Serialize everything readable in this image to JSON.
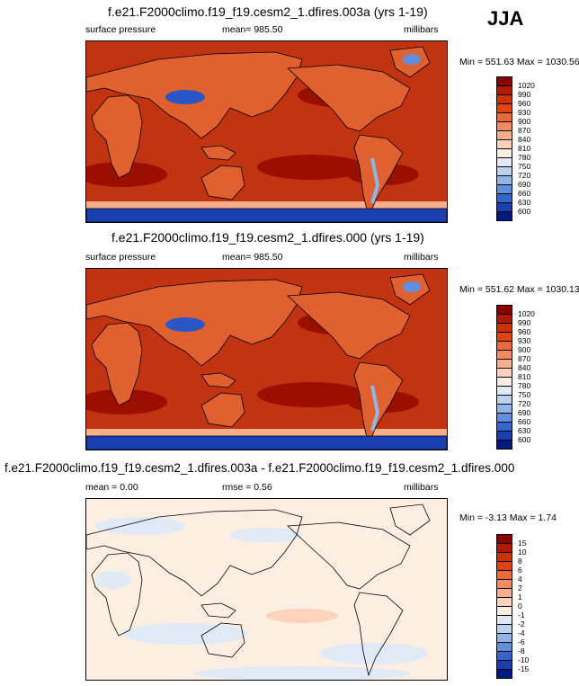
{
  "season": "JJA",
  "panels": [
    {
      "title": "f.e21.F2000climo.f19_f19.cesm2_1.dfires.003a (yrs 1-19)",
      "left_label": "surface pressure",
      "center_label": "mean= 985.50",
      "right_label": "millibars",
      "minmax": "Min = 551.63 Max = 1030.56",
      "type": "field"
    },
    {
      "title": "f.e21.F2000climo.f19_f19.cesm2_1.dfires.000 (yrs 1-19)",
      "left_label": "surface pressure",
      "center_label": "mean= 985.50",
      "right_label": "millibars",
      "minmax": "Min = 551.62 Max = 1030.13",
      "type": "field"
    },
    {
      "title": "f.e21.F2000climo.f19_f19.cesm2_1.dfires.003a - f.e21.F2000climo.f19_f19.cesm2_1.dfires.000",
      "left_label": "mean =   0.00",
      "center_label": "rmse =   0.56",
      "right_label": "millibars",
      "minmax": "Min =  -3.13 Max =   1.74",
      "type": "diff"
    }
  ],
  "chart_data": [
    {
      "type": "heatmap",
      "title": "f.e21.F2000climo.f19_f19.cesm2_1.dfires.003a (yrs 1-19)",
      "variable": "surface pressure",
      "units": "millibars",
      "mean": 985.5,
      "min": 551.63,
      "max": 1030.56,
      "colorbar_levels": [
        1020,
        990,
        960,
        930,
        900,
        870,
        840,
        810,
        780,
        750,
        720,
        690,
        660,
        630,
        600
      ],
      "colorbar_colors": [
        "#8b0000",
        "#b01a00",
        "#cc3300",
        "#dd4411",
        "#ea6a38",
        "#f28b5f",
        "#f7ae8b",
        "#fbd3bd",
        "#fdeee2",
        "#dfeaf6",
        "#b8d2ef",
        "#8fb6e6",
        "#5f8fdd",
        "#3366cc",
        "#1a3fb0",
        "#001a80"
      ]
    },
    {
      "type": "heatmap",
      "title": "f.e21.F2000climo.f19_f19.cesm2_1.dfires.000 (yrs 1-19)",
      "variable": "surface pressure",
      "units": "millibars",
      "mean": 985.5,
      "min": 551.62,
      "max": 1030.13,
      "colorbar_levels": [
        1020,
        990,
        960,
        930,
        900,
        870,
        840,
        810,
        780,
        750,
        720,
        690,
        660,
        630,
        600
      ],
      "colorbar_colors": [
        "#8b0000",
        "#b01a00",
        "#cc3300",
        "#dd4411",
        "#ea6a38",
        "#f28b5f",
        "#f7ae8b",
        "#fbd3bd",
        "#fdeee2",
        "#dfeaf6",
        "#b8d2ef",
        "#8fb6e6",
        "#5f8fdd",
        "#3366cc",
        "#1a3fb0",
        "#001a80"
      ]
    },
    {
      "type": "heatmap",
      "title": "f.e21.F2000climo.f19_f19.cesm2_1.dfires.003a - f.e21.F2000climo.f19_f19.cesm2_1.dfires.000",
      "units": "millibars",
      "mean": 0.0,
      "rmse": 0.56,
      "min": -3.13,
      "max": 1.74,
      "colorbar_levels": [
        15,
        10,
        8,
        6,
        4,
        2,
        1,
        0,
        -1,
        -2,
        -4,
        -6,
        -8,
        -10,
        -15
      ],
      "colorbar_colors": [
        "#8b0000",
        "#b01a00",
        "#cc3300",
        "#dd4411",
        "#ea6a38",
        "#f28b5f",
        "#f7ae8b",
        "#fbd3bd",
        "#fdeee2",
        "#dfeaf6",
        "#b8d2ef",
        "#8fb6e6",
        "#5f8fdd",
        "#3366cc",
        "#1a3fb0",
        "#001a80"
      ]
    }
  ]
}
